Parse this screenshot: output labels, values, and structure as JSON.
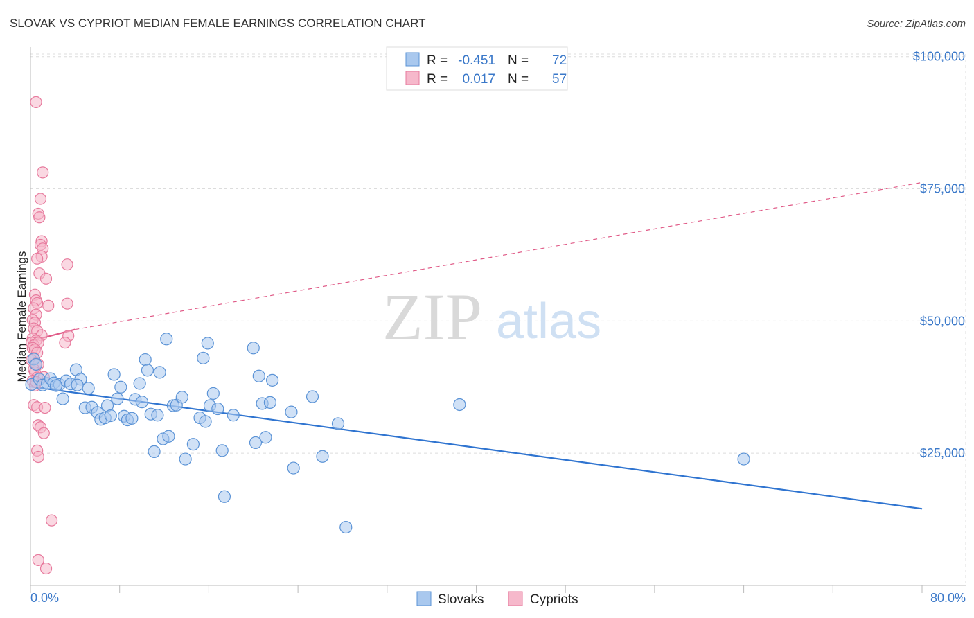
{
  "header": {
    "title": "SLOVAK VS CYPRIOT MEDIAN FEMALE EARNINGS CORRELATION CHART",
    "source": "Source: ZipAtlas.com"
  },
  "watermark": {
    "zip": "ZIP",
    "atlas": "atlas"
  },
  "legend": {
    "rows": [
      {
        "r_label": "R = ",
        "r_value": "-0.451",
        "n_label": "N = ",
        "n_value": "72"
      },
      {
        "r_label": "R = ",
        "r_value": "0.017",
        "n_label": "N = ",
        "n_value": "57"
      }
    ],
    "bottom": [
      "Slovaks",
      "Cypriots"
    ]
  },
  "chart_data": {
    "type": "scatter",
    "title": "SLOVAK VS CYPRIOT MEDIAN FEMALE EARNINGS CORRELATION CHART",
    "ylabel": "Median Female Earnings",
    "xlabel": "",
    "xlim": [
      0,
      80
    ],
    "ylim": [
      0,
      105000
    ],
    "x_tick_labels": [
      "0.0%",
      "80.0%"
    ],
    "y_ticks": [
      {
        "value": 25000,
        "label": "$25,000"
      },
      {
        "value": 50000,
        "label": "$50,000"
      },
      {
        "value": 75000,
        "label": "$75,000"
      },
      {
        "value": 100000,
        "label": "$100,000"
      }
    ],
    "grid": true,
    "legend_position": "top-center",
    "colors": {
      "slovaks_fill": "#a9c8ee",
      "slovaks_stroke": "#5b93d6",
      "slovaks_line": "#2f74d0",
      "cypriots_fill": "#f6b8cb",
      "cypriots_stroke": "#e77a9d",
      "cypriots_line": "#e05a87"
    },
    "series": [
      {
        "name": "Slovaks",
        "r": -0.451,
        "n": 72,
        "trend": {
          "x": [
            0,
            80
          ],
          "y": [
            37600,
            14500
          ],
          "style": "solid"
        },
        "points": [
          [
            0.1,
            38000
          ],
          [
            0.3,
            42800
          ],
          [
            0.5,
            41800
          ],
          [
            0.8,
            39000
          ],
          [
            1.1,
            37900
          ],
          [
            1.5,
            38200
          ],
          [
            1.8,
            39100
          ],
          [
            2.1,
            38300
          ],
          [
            2.6,
            38000
          ],
          [
            2.9,
            35300
          ],
          [
            3.2,
            38700
          ],
          [
            3.6,
            38100
          ],
          [
            4.1,
            40800
          ],
          [
            4.5,
            39000
          ],
          [
            4.9,
            33600
          ],
          [
            5.2,
            37300
          ],
          [
            5.5,
            33700
          ],
          [
            6.0,
            32700
          ],
          [
            6.3,
            31400
          ],
          [
            6.7,
            31700
          ],
          [
            6.9,
            34000
          ],
          [
            7.2,
            32100
          ],
          [
            7.5,
            39900
          ],
          [
            7.8,
            35300
          ],
          [
            8.1,
            37500
          ],
          [
            8.4,
            32000
          ],
          [
            8.7,
            31300
          ],
          [
            9.1,
            31600
          ],
          [
            9.4,
            35200
          ],
          [
            9.8,
            38200
          ],
          [
            10.0,
            34700
          ],
          [
            10.3,
            42700
          ],
          [
            10.5,
            40700
          ],
          [
            10.8,
            32400
          ],
          [
            11.1,
            25300
          ],
          [
            11.4,
            32200
          ],
          [
            11.6,
            40300
          ],
          [
            11.9,
            27700
          ],
          [
            12.2,
            46600
          ],
          [
            12.4,
            28200
          ],
          [
            12.8,
            34000
          ],
          [
            13.1,
            34100
          ],
          [
            13.6,
            35600
          ],
          [
            13.9,
            23900
          ],
          [
            14.6,
            26700
          ],
          [
            15.2,
            31700
          ],
          [
            15.5,
            43000
          ],
          [
            15.7,
            31000
          ],
          [
            15.9,
            45800
          ],
          [
            16.1,
            34000
          ],
          [
            16.4,
            36300
          ],
          [
            16.8,
            33400
          ],
          [
            17.2,
            25500
          ],
          [
            17.4,
            16800
          ],
          [
            18.2,
            32200
          ],
          [
            20.0,
            44900
          ],
          [
            20.2,
            27000
          ],
          [
            20.5,
            39600
          ],
          [
            20.8,
            34400
          ],
          [
            21.1,
            28000
          ],
          [
            21.5,
            34600
          ],
          [
            21.7,
            38800
          ],
          [
            23.4,
            32800
          ],
          [
            23.6,
            22200
          ],
          [
            25.3,
            35700
          ],
          [
            26.2,
            24400
          ],
          [
            27.6,
            30600
          ],
          [
            28.3,
            11000
          ],
          [
            38.5,
            34200
          ],
          [
            64.0,
            23900
          ],
          [
            2.3,
            37800
          ],
          [
            4.2,
            37900
          ]
        ]
      },
      {
        "name": "Cypriots",
        "r": 0.017,
        "n": 57,
        "trend_solid": {
          "x": [
            0,
            4
          ],
          "y": [
            46200,
            48400
          ]
        },
        "trend_dashed": {
          "x": [
            4,
            80
          ],
          "y": [
            48400,
            76200
          ]
        },
        "points": [
          [
            0.5,
            91400
          ],
          [
            1.1,
            78100
          ],
          [
            0.9,
            73100
          ],
          [
            0.7,
            70300
          ],
          [
            0.8,
            69600
          ],
          [
            1.0,
            65100
          ],
          [
            0.9,
            64400
          ],
          [
            1.1,
            63700
          ],
          [
            1.0,
            62200
          ],
          [
            0.6,
            61800
          ],
          [
            3.3,
            60700
          ],
          [
            0.8,
            59000
          ],
          [
            1.4,
            58000
          ],
          [
            0.4,
            55000
          ],
          [
            0.5,
            53900
          ],
          [
            0.6,
            53400
          ],
          [
            3.3,
            53300
          ],
          [
            1.6,
            52900
          ],
          [
            0.3,
            52400
          ],
          [
            0.5,
            51200
          ],
          [
            0.2,
            50200
          ],
          [
            0.4,
            49700
          ],
          [
            0.3,
            48600
          ],
          [
            0.6,
            48100
          ],
          [
            1.0,
            47300
          ],
          [
            3.4,
            47200
          ],
          [
            0.2,
            46700
          ],
          [
            0.5,
            46300
          ],
          [
            0.1,
            45900
          ],
          [
            0.3,
            45400
          ],
          [
            0.7,
            45900
          ],
          [
            3.1,
            45900
          ],
          [
            0.2,
            44900
          ],
          [
            0.4,
            44600
          ],
          [
            0.6,
            44000
          ],
          [
            0.3,
            43000
          ],
          [
            0.1,
            42600
          ],
          [
            0.5,
            42000
          ],
          [
            0.7,
            41800
          ],
          [
            0.3,
            40900
          ],
          [
            0.4,
            40300
          ],
          [
            0.6,
            39300
          ],
          [
            1.2,
            39400
          ],
          [
            0.2,
            38700
          ],
          [
            0.4,
            37800
          ],
          [
            0.3,
            34100
          ],
          [
            0.6,
            33700
          ],
          [
            1.3,
            33600
          ],
          [
            0.7,
            30300
          ],
          [
            0.9,
            29900
          ],
          [
            1.2,
            28800
          ],
          [
            0.6,
            25500
          ],
          [
            0.7,
            24300
          ],
          [
            1.9,
            12300
          ],
          [
            0.7,
            4800
          ],
          [
            1.4,
            3200
          ],
          [
            0.5,
            38500
          ]
        ]
      }
    ]
  }
}
